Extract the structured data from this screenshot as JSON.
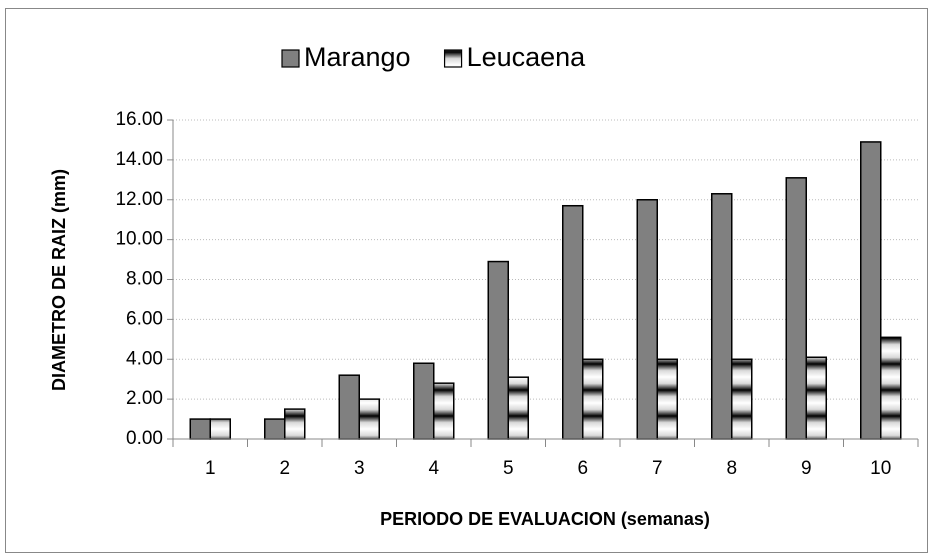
{
  "chart_data": {
    "type": "bar",
    "x_label": "PERIODO DE EVALUACION (semanas)",
    "y_label": "DIAMETRO DE RAIZ (mm)",
    "categories": [
      "1",
      "2",
      "3",
      "4",
      "5",
      "6",
      "7",
      "8",
      "9",
      "10"
    ],
    "series": [
      {
        "name": "Marango",
        "color": "#808080",
        "values": [
          1.0,
          1.0,
          3.2,
          3.8,
          8.9,
          11.7,
          12.0,
          12.3,
          13.1,
          14.9
        ]
      },
      {
        "name": "Leucaena",
        "color": "#d9d9d9",
        "values": [
          1.0,
          1.5,
          2.0,
          2.8,
          3.1,
          4.0,
          4.0,
          4.0,
          4.1,
          5.1
        ]
      }
    ],
    "ylim": [
      0,
      16
    ],
    "yticks": [
      {
        "value": 0,
        "label": "0.00"
      },
      {
        "value": 2,
        "label": "2.00"
      },
      {
        "value": 4,
        "label": "4.00"
      },
      {
        "value": 6,
        "label": "6.00"
      },
      {
        "value": 8,
        "label": "8.00"
      },
      {
        "value": 10,
        "label": "10.00"
      },
      {
        "value": 12,
        "label": "12.00"
      },
      {
        "value": 14,
        "label": "14.00"
      },
      {
        "value": 16,
        "label": "16.00"
      }
    ],
    "grid": true,
    "legend": "top"
  }
}
